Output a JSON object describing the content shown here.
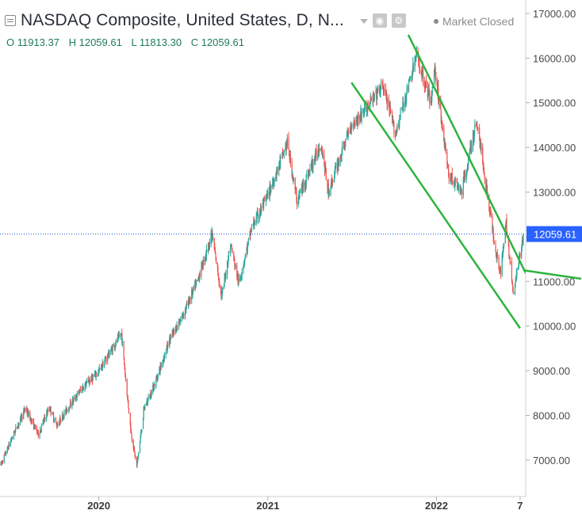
{
  "header": {
    "title": "NASDAQ Composite, United States, D, N...",
    "market_status": "Market Closed",
    "ohlc": {
      "open": "O 11913.37",
      "high": "H 12059.61",
      "low": "L 11813.30",
      "close": "C 12059.61"
    },
    "icons": [
      "symbol-info-icon",
      "dropdown-icon",
      "eye-icon",
      "gear-icon"
    ]
  },
  "chart_data": {
    "type": "candlestick",
    "title": "NASDAQ Composite, United States, D, N...",
    "xlabel": "",
    "ylabel": "",
    "x_range": [
      "2019-06-01",
      "2022-07-08"
    ],
    "ylim": [
      6200,
      17300
    ],
    "y_ticks": [
      7000,
      8000,
      9000,
      10000,
      11000,
      12000,
      13000,
      14000,
      15000,
      16000,
      17000
    ],
    "y_tick_labels": [
      "7000.00",
      "8000.00",
      "9000.00",
      "10000.00",
      "11000.00",
      "12000.00",
      "13000.00",
      "14000.00",
      "15000.00",
      "16000.00",
      "17000.00"
    ],
    "x_tick_labels": [
      {
        "date": "2020-01-01",
        "label": "2020"
      },
      {
        "date": "2021-01-01",
        "label": "2021"
      },
      {
        "date": "2022-01-01",
        "label": "2022"
      },
      {
        "date": "2022-07-01",
        "label": "7"
      }
    ],
    "last_price": 12059.61,
    "last_price_label": "12059.61",
    "colors": {
      "up": "#26a69a",
      "down": "#ef5350",
      "trendline": "#2db43d",
      "price_line": "#1e5ad8",
      "price_label_bg": "#2962ff"
    },
    "price_path": [
      [
        "2019-06-03",
        6900
      ],
      [
        "2019-07-01",
        7600
      ],
      [
        "2019-07-26",
        8150
      ],
      [
        "2019-08-23",
        7580
      ],
      [
        "2019-09-16",
        8180
      ],
      [
        "2019-10-02",
        7780
      ],
      [
        "2019-10-28",
        8200
      ],
      [
        "2019-11-29",
        8650
      ],
      [
        "2019-12-31",
        8970
      ],
      [
        "2020-01-24",
        9400
      ],
      [
        "2020-02-19",
        9820
      ],
      [
        "2020-03-01",
        8600
      ],
      [
        "2020-03-11",
        7600
      ],
      [
        "2020-03-23",
        6860
      ],
      [
        "2020-04-08",
        8150
      ],
      [
        "2020-05-01",
        8700
      ],
      [
        "2020-06-01",
        9650
      ],
      [
        "2020-07-01",
        10250
      ],
      [
        "2020-08-01",
        11000
      ],
      [
        "2020-09-02",
        12050
      ],
      [
        "2020-09-23",
        10650
      ],
      [
        "2020-10-12",
        11850
      ],
      [
        "2020-10-30",
        10950
      ],
      [
        "2020-11-27",
        12200
      ],
      [
        "2020-12-31",
        12900
      ],
      [
        "2021-02-12",
        14100
      ],
      [
        "2021-03-05",
        12800
      ],
      [
        "2021-04-26",
        14100
      ],
      [
        "2021-05-12",
        13000
      ],
      [
        "2021-06-30",
        14500
      ],
      [
        "2021-07-28",
        14800
      ],
      [
        "2021-09-07",
        15380
      ],
      [
        "2021-10-04",
        14300
      ],
      [
        "2021-11-19",
        16050
      ],
      [
        "2021-12-20",
        15000
      ],
      [
        "2021-12-28",
        15800
      ],
      [
        "2022-01-27",
        13400
      ],
      [
        "2022-02-24",
        13000
      ],
      [
        "2022-03-29",
        14600
      ],
      [
        "2022-05-09",
        11700
      ],
      [
        "2022-05-20",
        11200
      ],
      [
        "2022-06-01",
        12300
      ],
      [
        "2022-06-16",
        10700
      ],
      [
        "2022-07-08",
        12059.61
      ]
    ],
    "trendlines": [
      {
        "name": "upper",
        "points": [
          [
            "2021-11-01",
            16520
          ],
          [
            "2022-07-22",
            11000
          ]
        ]
      },
      {
        "name": "lower",
        "points": [
          [
            "2021-07-01",
            15450
          ],
          [
            "2022-07-01",
            9950
          ]
        ]
      }
    ]
  }
}
